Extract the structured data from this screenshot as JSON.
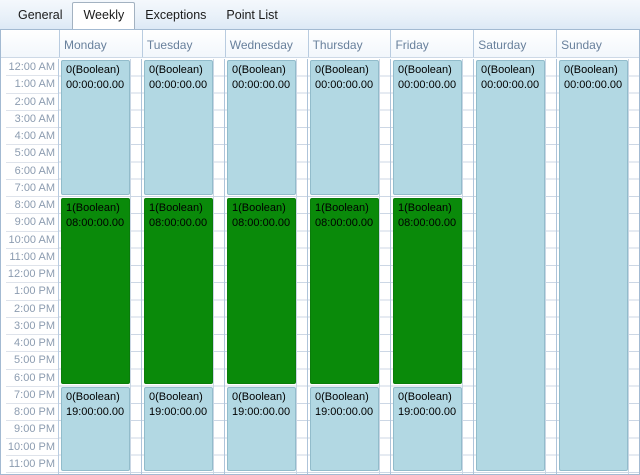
{
  "tabs": {
    "items": [
      {
        "label": "General",
        "selected": false
      },
      {
        "label": "Weekly",
        "selected": true
      },
      {
        "label": "Exceptions",
        "selected": false
      },
      {
        "label": "Point List",
        "selected": false
      }
    ]
  },
  "colors": {
    "event_off_fill": "#b2d8e3",
    "event_on_fill": "#0a8a0a",
    "header_text": "#68809c",
    "time_text": "#8c9cb0",
    "grid_border": "#a3bad2"
  },
  "schedule": {
    "time_labels": [
      "12:00 AM",
      "1:00 AM",
      "2:00 AM",
      "3:00 AM",
      "4:00 AM",
      "5:00 AM",
      "6:00 AM",
      "7:00 AM",
      "8:00 AM",
      "9:00 AM",
      "10:00 AM",
      "11:00 AM",
      "12:00 PM",
      "1:00 PM",
      "2:00 PM",
      "3:00 PM",
      "4:00 PM",
      "5:00 PM",
      "6:00 PM",
      "7:00 PM",
      "8:00 PM",
      "9:00 PM",
      "10:00 PM",
      "11:00 PM"
    ],
    "days": [
      {
        "label": "Monday",
        "events": [
          {
            "value": "0(Boolean)",
            "time": "00:00:00.00",
            "start": 0,
            "end": 8,
            "state": "off"
          },
          {
            "value": "1(Boolean)",
            "time": "08:00:00.00",
            "start": 8,
            "end": 19,
            "state": "on"
          },
          {
            "value": "0(Boolean)",
            "time": "19:00:00.00",
            "start": 19,
            "end": 24,
            "state": "off"
          }
        ]
      },
      {
        "label": "Tuesday",
        "events": [
          {
            "value": "0(Boolean)",
            "time": "00:00:00.00",
            "start": 0,
            "end": 8,
            "state": "off"
          },
          {
            "value": "1(Boolean)",
            "time": "08:00:00.00",
            "start": 8,
            "end": 19,
            "state": "on"
          },
          {
            "value": "0(Boolean)",
            "time": "19:00:00.00",
            "start": 19,
            "end": 24,
            "state": "off"
          }
        ]
      },
      {
        "label": "Wednesday",
        "events": [
          {
            "value": "0(Boolean)",
            "time": "00:00:00.00",
            "start": 0,
            "end": 8,
            "state": "off"
          },
          {
            "value": "1(Boolean)",
            "time": "08:00:00.00",
            "start": 8,
            "end": 19,
            "state": "on"
          },
          {
            "value": "0(Boolean)",
            "time": "19:00:00.00",
            "start": 19,
            "end": 24,
            "state": "off"
          }
        ]
      },
      {
        "label": "Thursday",
        "events": [
          {
            "value": "0(Boolean)",
            "time": "00:00:00.00",
            "start": 0,
            "end": 8,
            "state": "off"
          },
          {
            "value": "1(Boolean)",
            "time": "08:00:00.00",
            "start": 8,
            "end": 19,
            "state": "on"
          },
          {
            "value": "0(Boolean)",
            "time": "19:00:00.00",
            "start": 19,
            "end": 24,
            "state": "off"
          }
        ]
      },
      {
        "label": "Friday",
        "events": [
          {
            "value": "0(Boolean)",
            "time": "00:00:00.00",
            "start": 0,
            "end": 8,
            "state": "off"
          },
          {
            "value": "1(Boolean)",
            "time": "08:00:00.00",
            "start": 8,
            "end": 19,
            "state": "on"
          },
          {
            "value": "0(Boolean)",
            "time": "19:00:00.00",
            "start": 19,
            "end": 24,
            "state": "off"
          }
        ]
      },
      {
        "label": "Saturday",
        "events": [
          {
            "value": "0(Boolean)",
            "time": "00:00:00.00",
            "start": 0,
            "end": 24,
            "state": "off"
          }
        ]
      },
      {
        "label": "Sunday",
        "events": [
          {
            "value": "0(Boolean)",
            "time": "00:00:00.00",
            "start": 0,
            "end": 24,
            "state": "off"
          }
        ]
      }
    ]
  }
}
